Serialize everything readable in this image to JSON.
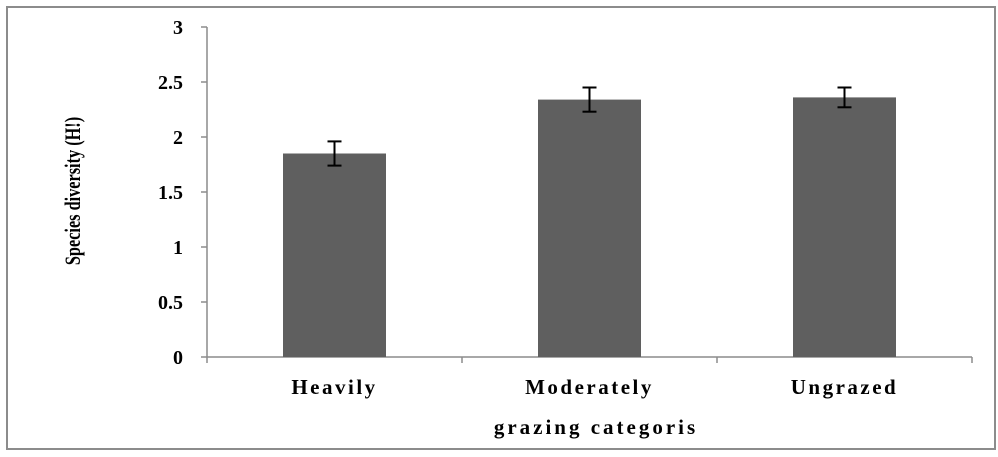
{
  "chart_data": {
    "type": "bar",
    "categories": [
      "Heavily",
      "Moderately",
      "Ungrazed"
    ],
    "values": [
      1.85,
      2.34,
      2.36
    ],
    "errors": [
      0.11,
      0.11,
      0.09
    ],
    "xlabel": "grazing categoris",
    "ylabel": "Species diversity (H!)",
    "ylim": [
      0,
      3
    ],
    "yticks": [
      "0",
      "0.5",
      "1",
      "1.5",
      "2",
      "2.5",
      "3"
    ],
    "grid": false,
    "legend": "none",
    "bar_color": "#5f5f5f",
    "frame_color": "#8c8c8c"
  }
}
